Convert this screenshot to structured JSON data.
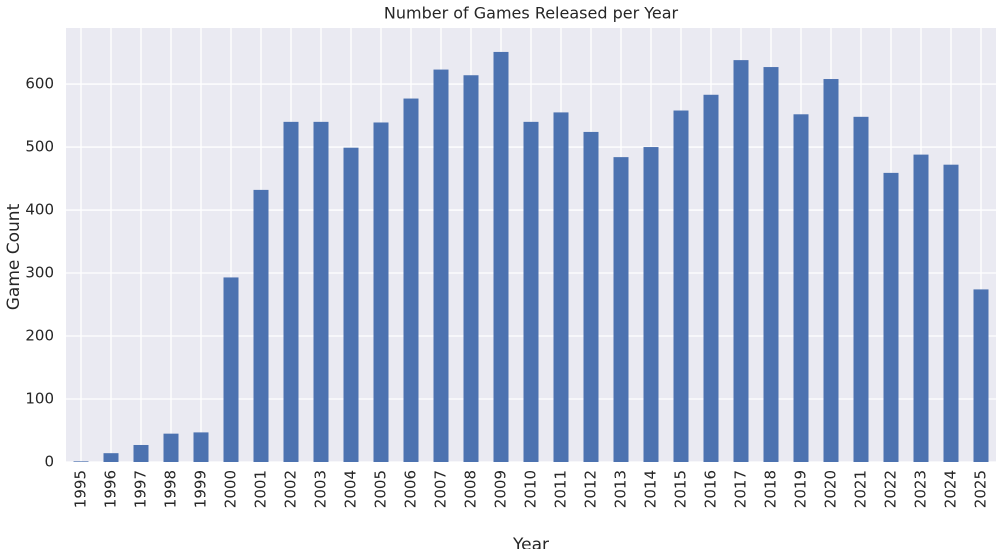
{
  "chart_data": {
    "type": "bar",
    "title": "Number of Games Released per Year",
    "x_label": "Year",
    "y_label": "Game Count",
    "categories": [
      "1995",
      "1996",
      "1997",
      "1998",
      "1999",
      "2000",
      "2001",
      "2002",
      "2003",
      "2004",
      "2005",
      "2006",
      "2007",
      "2008",
      "2009",
      "2010",
      "2011",
      "2012",
      "2013",
      "2014",
      "2015",
      "2016",
      "2017",
      "2018",
      "2019",
      "2020",
      "2021",
      "2022",
      "2023",
      "2024",
      "2025"
    ],
    "values": [
      1,
      14,
      27,
      45,
      47,
      293,
      432,
      540,
      540,
      499,
      539,
      577,
      623,
      614,
      651,
      540,
      555,
      524,
      484,
      500,
      558,
      583,
      638,
      627,
      552,
      608,
      548,
      459,
      488,
      472,
      274
    ],
    "color": "#4c72b0",
    "ylim": [
      0,
      689
    ],
    "yticks": [
      0,
      100,
      200,
      300,
      400,
      500,
      600
    ],
    "grid": true
  }
}
